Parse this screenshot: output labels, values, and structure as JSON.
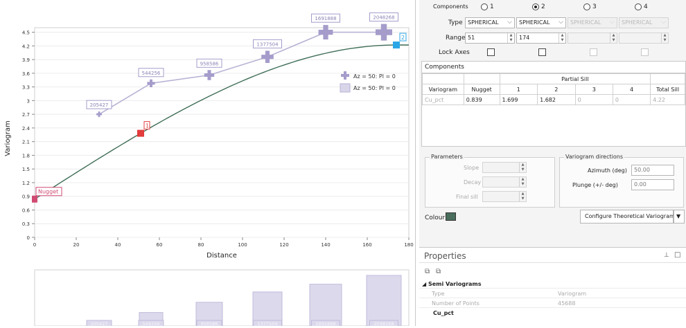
{
  "chart": {
    "xlabel": "Distance",
    "ylabel": "Variogram",
    "x_ticks": [
      "0",
      "20",
      "40",
      "60",
      "80",
      "100",
      "120",
      "140",
      "160",
      "180"
    ],
    "y_ticks": [
      "0",
      "0.3",
      "0.6",
      "0.9",
      "1.2",
      "1.5",
      "1.8",
      "2.1",
      "2.4",
      "2.7",
      "3",
      "3.3",
      "3.6",
      "3.9",
      "4.2",
      "4.5"
    ],
    "legend": [
      "Az = 50: Pl = 0",
      "Az = 50: Pl = 0"
    ],
    "nugget_label": "Nugget",
    "marker_1": "1",
    "marker_2": "2",
    "colors": {
      "model": "#3f6e57",
      "experimental": "#b7b2d4",
      "point": "#a59ccb",
      "marker1": "#e23c3c",
      "marker2": "#29a6e6",
      "nugget": "#d04a72"
    }
  },
  "chart_data": [
    {
      "type": "line",
      "xlabel": "Distance",
      "ylabel": "Variogram",
      "xlim": [
        0,
        180
      ],
      "ylim": [
        0,
        4.6
      ],
      "series": [
        {
          "name": "Az = 50: Pl = 0",
          "x": [
            31,
            56,
            84,
            112,
            140,
            168
          ],
          "y": [
            2.7,
            3.38,
            3.56,
            3.96,
            4.5,
            4.5
          ],
          "labels": [
            "205427",
            "544256",
            "958586",
            "1377504",
            "1691888",
            "2048268"
          ]
        }
      ],
      "model": {
        "nugget": 0.839,
        "sill": 4.22,
        "range": 174
      }
    },
    {
      "type": "bar",
      "categories": [
        "205427",
        "544256",
        "958586",
        "1377504",
        "1691888",
        "2048268"
      ],
      "values": [
        205427,
        544256,
        958586,
        1377504,
        1691888,
        2048268
      ]
    }
  ],
  "top": {
    "components_label": "Components",
    "radio_labels": [
      "1",
      "2",
      "3",
      "4"
    ],
    "selected_radio": 1,
    "type_label": "Type",
    "types": [
      "SPHERICAL",
      "SPHERICAL",
      "SPHERICAL",
      "SPHERICAL"
    ],
    "range_label": "Range",
    "range1": "51",
    "range2": "174",
    "lock_axes_label": "Lock Axes"
  },
  "components": {
    "title": "Components",
    "partial_sill": "Partial Sill",
    "headers": [
      "Variogram",
      "Nugget",
      "1",
      "2",
      "3",
      "4",
      "Total Sill"
    ],
    "row": [
      "Cu_pct",
      "0.839",
      "1.699",
      "1.682",
      "0",
      "0",
      "4.22"
    ]
  },
  "parameters": {
    "title": "Parameters",
    "slope": "Slope",
    "decay": "Decay",
    "final_sill": "Final sill"
  },
  "directions": {
    "title": "Variogram directions",
    "azimuth_label": "Azimuth (deg)",
    "azimuth_value": "50.00",
    "plunge_label": "Plunge (+/- deg)",
    "plunge_value": "0.00"
  },
  "colour_label": "Colour",
  "configure_button": "Configure Theoretical Variogram",
  "properties": {
    "title": "Properties",
    "section": "Semi Variograms",
    "rows": [
      {
        "key": "Type",
        "value": "Variogram"
      },
      {
        "key": "Number of Points",
        "value": "45688"
      }
    ],
    "item": "Cu_pct"
  }
}
